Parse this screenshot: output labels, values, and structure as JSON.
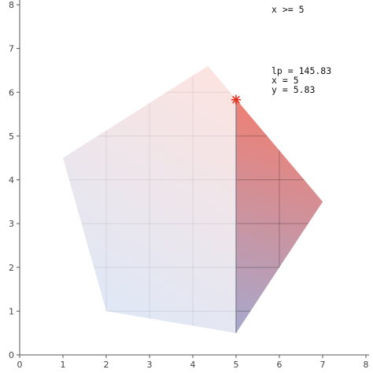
{
  "chart_data": {
    "type": "line",
    "title": "",
    "xlabel": "",
    "ylabel": "",
    "xlim": [
      0,
      8
    ],
    "ylim": [
      0,
      8
    ],
    "x_ticks": [
      "0",
      "1",
      "2",
      "3",
      "4",
      "5",
      "6",
      "7",
      "8"
    ],
    "y_ticks": [
      "0",
      "1",
      "2",
      "3",
      "4",
      "5",
      "6",
      "7",
      "8"
    ],
    "grid": true,
    "feasible_region": {
      "vertices": [
        [
          1,
          4.5
        ],
        [
          2,
          1
        ],
        [
          5,
          0.5
        ],
        [
          7,
          3.5
        ],
        [
          4.35,
          6.6
        ]
      ]
    },
    "constraint": {
      "label": "x >= 5",
      "boundary_x": 5
    },
    "optimum": {
      "x": 5,
      "y": 5.83,
      "text": [
        "lp = 145.83",
        "x = 5",
        "y = 5.83"
      ]
    },
    "colors": {
      "gradient_start": "#dde8f8",
      "gradient_end": "#fbe3e0",
      "constrained_top": "#ee8074",
      "constrained_bottom": "#a7a8cc",
      "optimum_marker": "#e0301e",
      "axis": "#555555",
      "grid": "#c8c8c8"
    }
  }
}
